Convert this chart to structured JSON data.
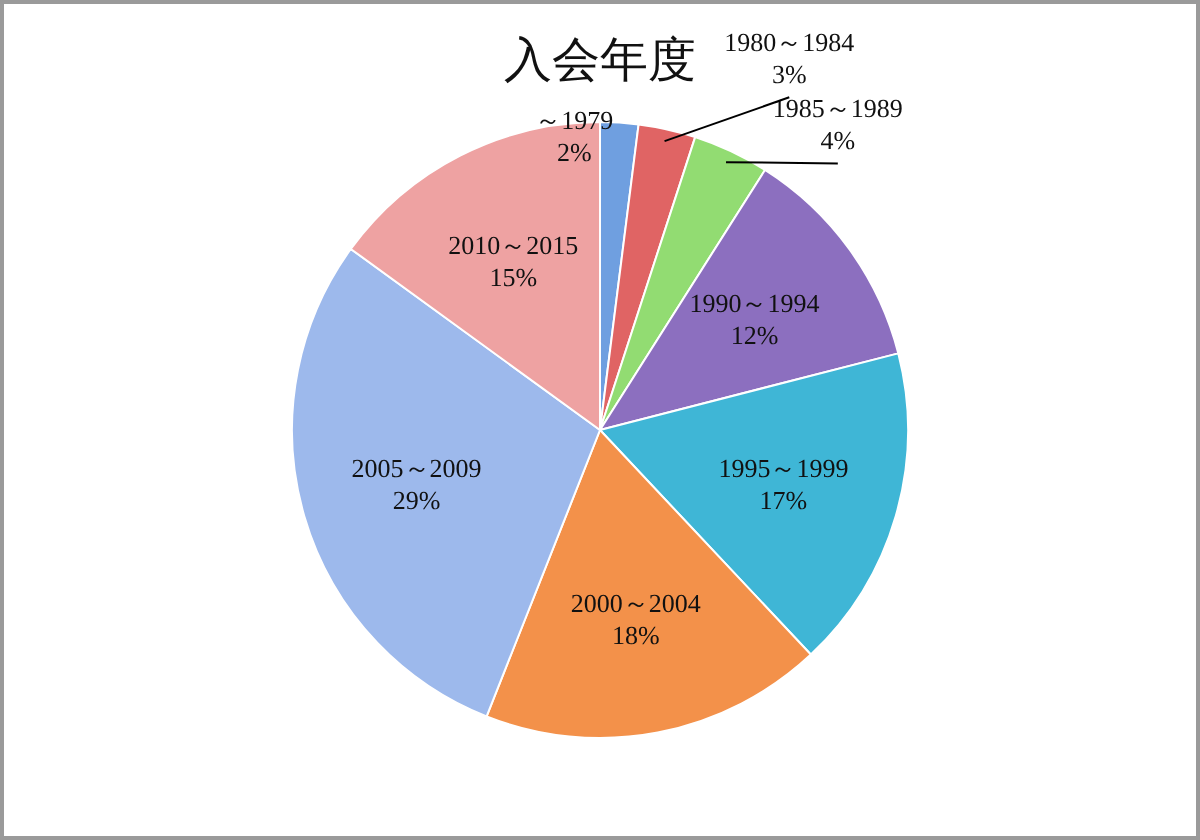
{
  "chart_data": {
    "type": "pie",
    "title": "入会年度",
    "categories": [
      "～1979",
      "1980～1984",
      "1985～1989",
      "1990～1994",
      "1995～1999",
      "2000～2004",
      "2005～2009",
      "2010～2015"
    ],
    "values": [
      2,
      3,
      4,
      12,
      17,
      18,
      29,
      15
    ],
    "value_labels": [
      "2%",
      "3%",
      "4%",
      "12%",
      "17%",
      "18%",
      "29%",
      "15%"
    ],
    "colors": [
      "#6f9fe0",
      "#e06464",
      "#92dc72",
      "#8c6fbf",
      "#3fb6d6",
      "#f3914a",
      "#9db9ec",
      "#eea2a2"
    ]
  }
}
